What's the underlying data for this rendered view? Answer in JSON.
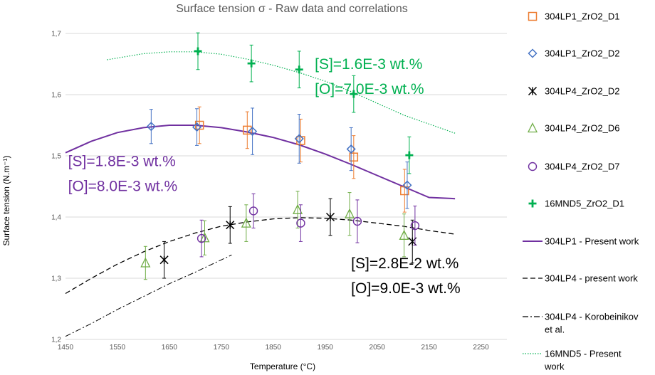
{
  "chart_data": {
    "type": "scatter",
    "title": "Surface tension σ - Raw data and correlations",
    "xlabel": "Temperature (°C)",
    "ylabel": "Surface tension (N.m⁻¹)",
    "xlim": [
      1450,
      2300
    ],
    "ylim": [
      1.2,
      1.7
    ],
    "xticks": [
      1450,
      1550,
      1650,
      1750,
      1850,
      1950,
      2050,
      2150,
      2250
    ],
    "yticks": [
      1.2,
      1.3,
      1.4,
      1.5,
      1.6,
      1.7
    ],
    "xtick_labels": [
      "1450",
      "1550",
      "1650",
      "1750",
      "1850",
      "1950",
      "2050",
      "2150",
      "2250"
    ],
    "ytick_labels": [
      "1,2",
      "1,3",
      "1,4",
      "1,5",
      "1,6",
      "1,7"
    ],
    "grid": "horizontal",
    "legend_position": "right",
    "series": [
      {
        "name": "304LP1_ZrO2_D1",
        "marker": "square",
        "color": "#ED7D31",
        "points": [
          [
            1708,
            1.55,
            0.03
          ],
          [
            1800,
            1.542,
            0.03
          ],
          [
            1903,
            1.525,
            0.035
          ],
          [
            2005,
            1.498,
            0.035
          ],
          [
            2103,
            1.443,
            0.035
          ]
        ]
      },
      {
        "name": "304LP1_ZrO2_D2",
        "marker": "diamond",
        "color": "#4472C4",
        "points": [
          [
            1615,
            1.548,
            0.028
          ],
          [
            1703,
            1.547,
            0.03
          ],
          [
            1810,
            1.54,
            0.038
          ],
          [
            1900,
            1.528,
            0.04
          ],
          [
            2000,
            1.511,
            0.035
          ],
          [
            2108,
            1.452,
            0.038
          ]
        ]
      },
      {
        "name": "304LP4_ZrO2_D2",
        "marker": "asterisk",
        "color": "#000000",
        "points": [
          [
            1640,
            1.33,
            0.03
          ],
          [
            1767,
            1.387,
            0.03
          ],
          [
            1960,
            1.4,
            0.03
          ],
          [
            2118,
            1.36,
            0.035
          ]
        ]
      },
      {
        "name": "304LP4_ZrO2_D6",
        "marker": "triangle",
        "color": "#70AD47",
        "points": [
          [
            1604,
            1.325,
            0.027
          ],
          [
            1718,
            1.366,
            0.028
          ],
          [
            1798,
            1.39,
            0.03
          ],
          [
            1897,
            1.412,
            0.03
          ],
          [
            1997,
            1.405,
            0.035
          ],
          [
            2102,
            1.37,
            0.035
          ]
        ]
      },
      {
        "name": "304LP4_ZrO2_D7",
        "marker": "circle",
        "color": "#7030A0",
        "points": [
          [
            1712,
            1.365,
            0.03
          ],
          [
            1812,
            1.41,
            0.028
          ],
          [
            1903,
            1.39,
            0.03
          ],
          [
            2012,
            1.393,
            0.035
          ],
          [
            2123,
            1.386,
            0.032
          ]
        ]
      },
      {
        "name": "16MND5_ZrO2_D1",
        "marker": "plus",
        "color": "#00B050",
        "points": [
          [
            1705,
            1.671,
            0.03
          ],
          [
            1808,
            1.651,
            0.03
          ],
          [
            1900,
            1.641,
            0.03
          ],
          [
            2005,
            1.601,
            0.03
          ],
          [
            2112,
            1.501,
            0.03
          ]
        ]
      }
    ],
    "lines": [
      {
        "name": "304LP1 - Present work",
        "style": "solid",
        "color": "#7030A0",
        "points": [
          [
            1450,
            1.505
          ],
          [
            1500,
            1.524
          ],
          [
            1550,
            1.538
          ],
          [
            1600,
            1.546
          ],
          [
            1650,
            1.55
          ],
          [
            1700,
            1.55
          ],
          [
            1750,
            1.546
          ],
          [
            1800,
            1.539
          ],
          [
            1850,
            1.53
          ],
          [
            1900,
            1.518
          ],
          [
            1950,
            1.503
          ],
          [
            2000,
            1.486
          ],
          [
            2050,
            1.468
          ],
          [
            2100,
            1.45
          ],
          [
            2150,
            1.432
          ],
          [
            2200,
            1.43
          ]
        ]
      },
      {
        "name": "304LP4 - present work",
        "style": "dashed",
        "color": "#000000",
        "points": [
          [
            1450,
            1.275
          ],
          [
            1500,
            1.3
          ],
          [
            1550,
            1.323
          ],
          [
            1600,
            1.343
          ],
          [
            1650,
            1.36
          ],
          [
            1700,
            1.374
          ],
          [
            1750,
            1.385
          ],
          [
            1800,
            1.392
          ],
          [
            1850,
            1.397
          ],
          [
            1900,
            1.399
          ],
          [
            1950,
            1.398
          ],
          [
            2000,
            1.395
          ],
          [
            2050,
            1.39
          ],
          [
            2100,
            1.385
          ],
          [
            2150,
            1.378
          ],
          [
            2200,
            1.372
          ]
        ]
      },
      {
        "name": "304LP4 - Korobeinikov et al.",
        "style": "dashdot",
        "color": "#000000",
        "points": [
          [
            1450,
            1.205
          ],
          [
            1500,
            1.226
          ],
          [
            1550,
            1.249
          ],
          [
            1600,
            1.27
          ],
          [
            1650,
            1.291
          ],
          [
            1700,
            1.31
          ],
          [
            1750,
            1.33
          ],
          [
            1770,
            1.338
          ]
        ]
      },
      {
        "name": "16MND5 - Present work",
        "style": "dotted",
        "color": "#00B050",
        "points": [
          [
            1530,
            1.657
          ],
          [
            1600,
            1.667
          ],
          [
            1650,
            1.67
          ],
          [
            1700,
            1.67
          ],
          [
            1750,
            1.666
          ],
          [
            1800,
            1.658
          ],
          [
            1850,
            1.648
          ],
          [
            1900,
            1.636
          ],
          [
            1950,
            1.622
          ],
          [
            2000,
            1.605
          ],
          [
            2050,
            1.586
          ],
          [
            2100,
            1.567
          ],
          [
            2150,
            1.552
          ],
          [
            2200,
            1.537
          ]
        ]
      }
    ],
    "legend": [
      {
        "label": "304LP1_ZrO2_D1",
        "marker": "square",
        "color": "#ED7D31"
      },
      {
        "label": "304LP1_ZrO2_D2",
        "marker": "diamond",
        "color": "#4472C4"
      },
      {
        "label": "304LP4_ZrO2_D2",
        "marker": "asterisk",
        "color": "#000000"
      },
      {
        "label": "304LP4_ZrO2_D6",
        "marker": "triangle",
        "color": "#70AD47"
      },
      {
        "label": "304LP4_ZrO2_D7",
        "marker": "circle",
        "color": "#7030A0"
      },
      {
        "label": "16MND5_ZrO2_D1",
        "marker": "plus",
        "color": "#00B050"
      },
      {
        "label": "304LP1 - Present work",
        "line": "solid",
        "color": "#7030A0"
      },
      {
        "label": "304LP4 - present work",
        "line": "dashed",
        "color": "#000000"
      },
      {
        "label": "304LP4 - Korobeinikov",
        "label2": "et al.",
        "line": "dashdot",
        "color": "#000000"
      },
      {
        "label": "16MND5 - Present",
        "label2": "work",
        "line": "dotted",
        "color": "#00B050"
      }
    ],
    "annotations": [
      {
        "lines": [
          "[S]=1.6E-3 wt.%",
          "[O]=7.0E-3 wt.%"
        ],
        "color": "#00B050",
        "anchor": [
          1930,
          1.642
        ]
      },
      {
        "lines": [
          "[S]=1.8E-3 wt.%",
          "[O]=8.0E-3 wt.%"
        ],
        "color": "#7030A0",
        "anchor": [
          1455,
          1.483
        ]
      },
      {
        "lines": [
          "[S]=2.8E-2 wt.%",
          "[O]=9.0E-3 wt.%"
        ],
        "color": "#000000",
        "anchor": [
          2000,
          1.316
        ]
      }
    ]
  }
}
